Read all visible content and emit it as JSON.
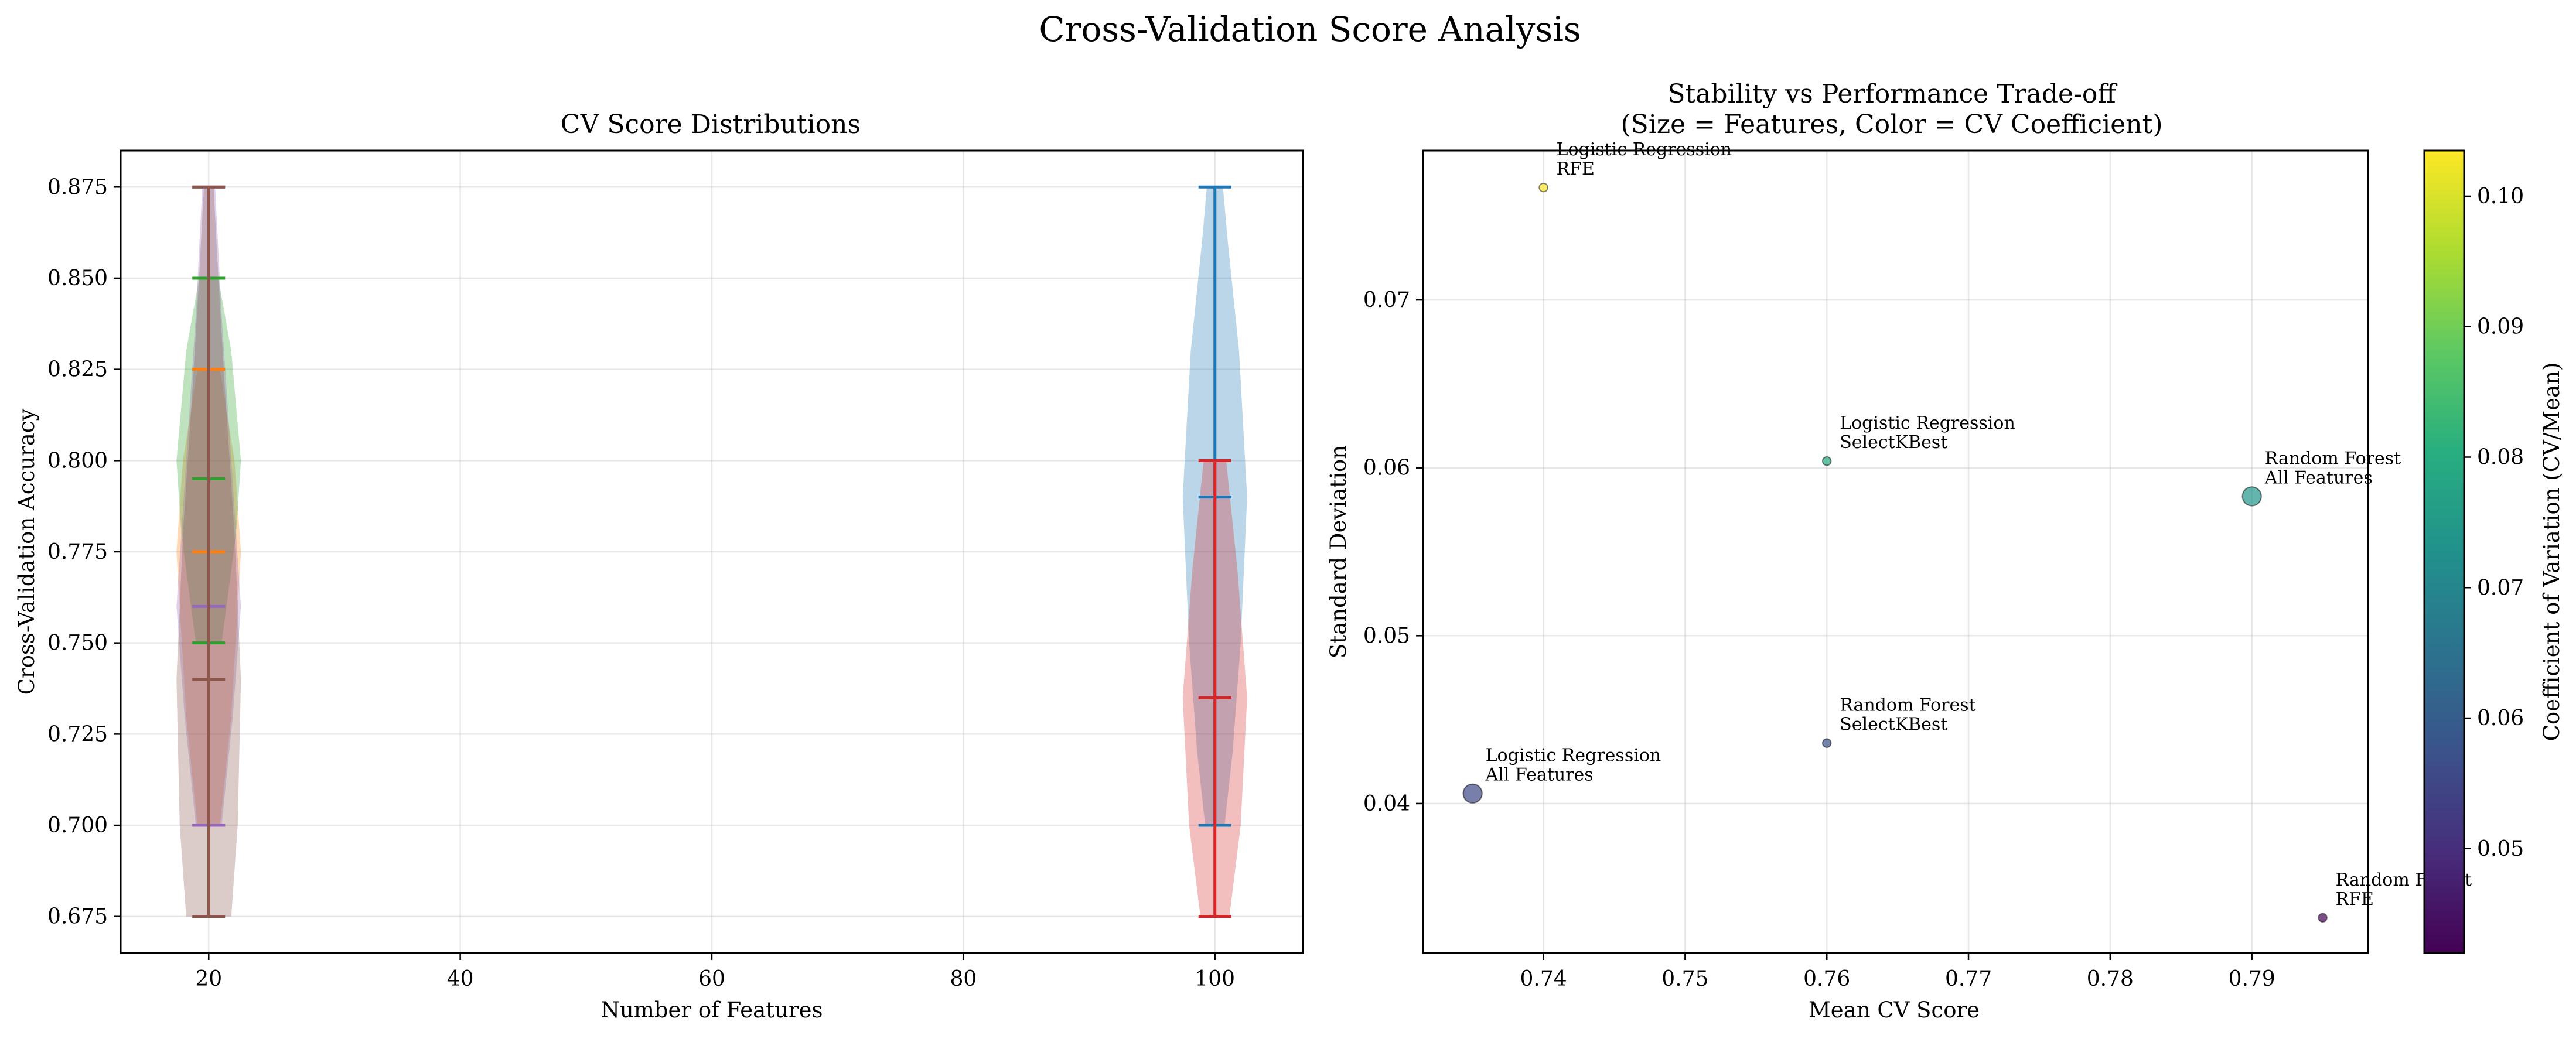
{
  "figure": {
    "title": "Cross-Validation Score Analysis"
  },
  "chart_data": [
    {
      "type": "violin",
      "title": "CV Score Distributions",
      "xlabel": "Number of Features",
      "ylabel": "Cross-Validation Accuracy",
      "xlim": [
        13,
        107
      ],
      "ylim": [
        0.665,
        0.885
      ],
      "xticks": [
        20,
        40,
        60,
        80,
        100
      ],
      "yticks": [
        0.675,
        0.7,
        0.725,
        0.75,
        0.775,
        0.8,
        0.825,
        0.85,
        0.875
      ],
      "grid": true,
      "series": [
        {
          "x": 100,
          "min": 0.7,
          "max": 0.875,
          "median": 0.79,
          "color": "#1f77b4",
          "widths": [
            [
              0.7,
              0.3
            ],
            [
              0.72,
              0.55
            ],
            [
              0.75,
              0.8
            ],
            [
              0.79,
              1.0
            ],
            [
              0.83,
              0.75
            ],
            [
              0.86,
              0.4
            ],
            [
              0.875,
              0.25
            ]
          ]
        },
        {
          "x": 20,
          "min": 0.7,
          "max": 0.825,
          "median": 0.775,
          "color": "#ff7f0e",
          "widths": [
            [
              0.7,
              0.35
            ],
            [
              0.73,
              0.7
            ],
            [
              0.775,
              1.0
            ],
            [
              0.8,
              0.8
            ],
            [
              0.825,
              0.35
            ]
          ]
        },
        {
          "x": 20,
          "min": 0.75,
          "max": 0.85,
          "median": 0.795,
          "color": "#2ca02c",
          "widths": [
            [
              0.75,
              0.4
            ],
            [
              0.78,
              0.85
            ],
            [
              0.8,
              1.0
            ],
            [
              0.83,
              0.7
            ],
            [
              0.85,
              0.3
            ]
          ]
        },
        {
          "x": 100,
          "min": 0.675,
          "max": 0.8,
          "median": 0.735,
          "color": "#d62728",
          "widths": [
            [
              0.675,
              0.45
            ],
            [
              0.7,
              0.8
            ],
            [
              0.735,
              1.0
            ],
            [
              0.77,
              0.7
            ],
            [
              0.8,
              0.35
            ]
          ]
        },
        {
          "x": 20,
          "min": 0.7,
          "max": 0.875,
          "median": 0.76,
          "color": "#9467bd",
          "widths": [
            [
              0.7,
              0.4
            ],
            [
              0.73,
              0.75
            ],
            [
              0.76,
              1.0
            ],
            [
              0.8,
              0.7
            ],
            [
              0.84,
              0.4
            ],
            [
              0.875,
              0.2
            ]
          ]
        },
        {
          "x": 20,
          "min": 0.675,
          "max": 0.875,
          "median": 0.74,
          "color": "#8c564b",
          "widths": [
            [
              0.675,
              0.7
            ],
            [
              0.7,
              0.9
            ],
            [
              0.74,
              1.0
            ],
            [
              0.78,
              0.8
            ],
            [
              0.82,
              0.5
            ],
            [
              0.85,
              0.3
            ],
            [
              0.875,
              0.15
            ]
          ]
        }
      ]
    },
    {
      "type": "scatter",
      "title": "Stability vs Performance Trade-off\n(Size = Features, Color = CV Coefficient)",
      "title_lines": [
        "Stability vs Performance Trade-off",
        "(Size = Features, Color = CV Coefficient)"
      ],
      "xlabel": "Mean CV Score",
      "ylabel": "Standard Deviation",
      "xlim": [
        0.7315,
        0.7982
      ],
      "ylim": [
        0.0311,
        0.0789
      ],
      "xticks": [
        0.74,
        0.75,
        0.76,
        0.77,
        0.78,
        0.79
      ],
      "yticks": [
        0.04,
        0.05,
        0.06,
        0.07
      ],
      "grid": true,
      "colorbar": {
        "label": "Coefficient of Variation (CV/Mean)",
        "range": [
          0.042,
          0.1035
        ],
        "ticks": [
          0.05,
          0.06,
          0.07,
          0.08,
          0.09,
          0.1
        ],
        "colormap": "viridis"
      },
      "points": [
        {
          "model": "Logistic Regression",
          "method": "All Features",
          "mean": 0.735,
          "std": 0.0406,
          "features": 100,
          "cv": 0.0552
        },
        {
          "model": "Logistic Regression",
          "method": "SelectKBest",
          "mean": 0.76,
          "std": 0.0604,
          "features": 20,
          "cv": 0.0795
        },
        {
          "model": "Logistic Regression",
          "method": "RFE",
          "mean": 0.74,
          "std": 0.0767,
          "features": 20,
          "cv": 0.1036
        },
        {
          "model": "Random Forest",
          "method": "All Features",
          "mean": 0.79,
          "std": 0.0583,
          "features": 100,
          "cv": 0.0738
        },
        {
          "model": "Random Forest",
          "method": "SelectKBest",
          "mean": 0.76,
          "std": 0.0436,
          "features": 20,
          "cv": 0.0574
        },
        {
          "model": "Random Forest",
          "method": "RFE",
          "mean": 0.795,
          "std": 0.0332,
          "features": 20,
          "cv": 0.0418
        }
      ]
    }
  ]
}
